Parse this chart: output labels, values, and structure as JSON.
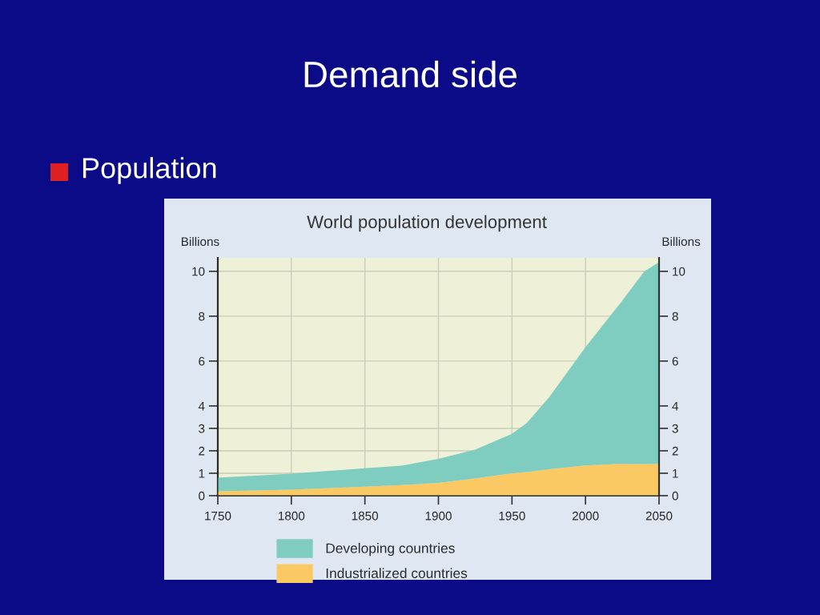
{
  "chart_data": {
    "type": "area",
    "title": "World population development",
    "annotations": [
      "Demand side",
      "Population"
    ],
    "ylabel": "Billions",
    "y2label": "Billions",
    "x": [
      1750,
      1800,
      1850,
      1875,
      1900,
      1925,
      1950,
      1960,
      1975,
      2000,
      2025,
      2040,
      2050
    ],
    "series": [
      {
        "name": "Industrialized countries",
        "color": "#fbc964",
        "values": [
          0.2,
          0.27,
          0.4,
          0.47,
          0.57,
          0.77,
          1.0,
          1.05,
          1.18,
          1.35,
          1.42,
          1.41,
          1.42
        ]
      },
      {
        "name": "Developing countries",
        "color": "#7ecdc0",
        "values": [
          0.6,
          0.71,
          0.82,
          0.87,
          1.07,
          1.28,
          1.76,
          2.19,
          3.18,
          5.27,
          7.27,
          8.59,
          8.98
        ]
      }
    ],
    "stacked": true,
    "xlim": [
      1750,
      2050
    ],
    "xticks": [
      1750,
      1800,
      1850,
      1900,
      1950,
      2000,
      2050
    ],
    "ylim": [
      0,
      10.6
    ],
    "yticks": [
      0,
      1,
      2,
      3,
      4,
      6,
      8,
      10
    ],
    "y2lim": [
      0,
      10.6
    ],
    "y2ticks": [
      0,
      1,
      2,
      3,
      4,
      6,
      8,
      10
    ],
    "grid": true,
    "legend": "bottom"
  }
}
